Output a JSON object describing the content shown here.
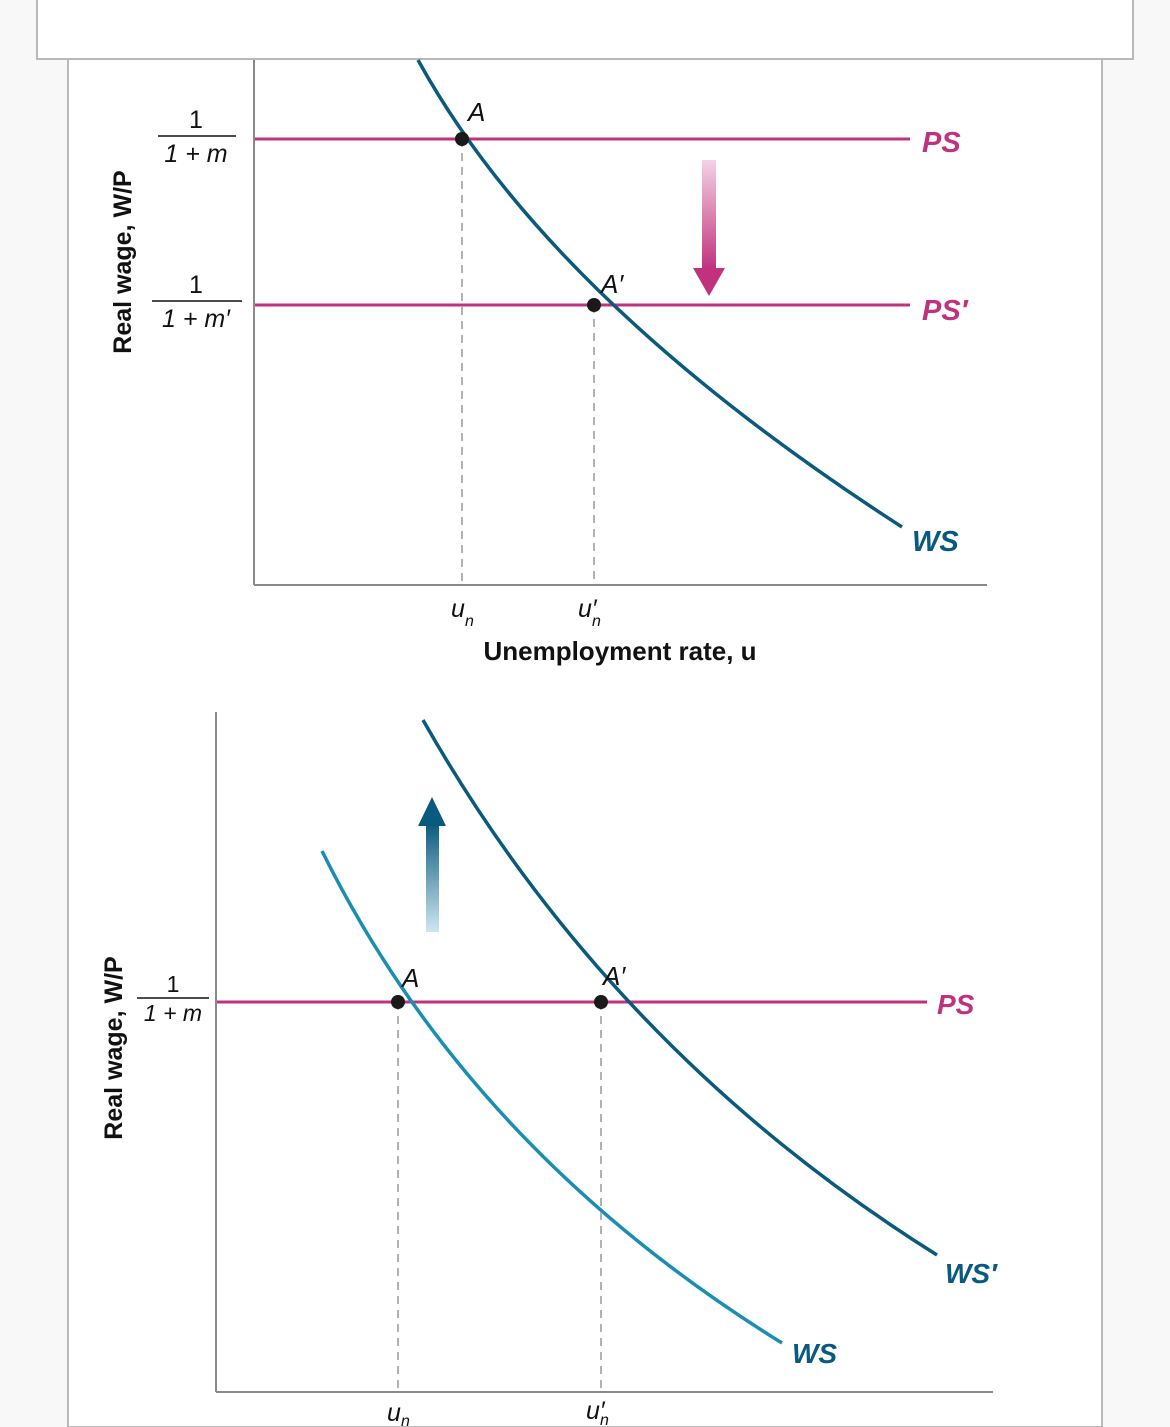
{
  "colors": {
    "ps": "#c0317e",
    "ws": "#0a5a7e",
    "ws_light": "#1a8db3",
    "axis": "#8a8a8a",
    "point": "#1a1a1a",
    "page_bg": "#f8f8f8",
    "card_bg": "#ffffff"
  },
  "top_panel": {
    "y_axis_title": "Real wage, W/P",
    "x_axis_title": "Unemployment rate, u",
    "ps_level": {
      "numerator": "1",
      "denominator": "1 + m"
    },
    "ps_prime_level": {
      "numerator": "1",
      "denominator": "1 + m′"
    },
    "curves": {
      "ps": "PS",
      "ps_prime": "PS′",
      "ws": "WS"
    },
    "points": {
      "a": "A",
      "a_prime": "A′"
    },
    "x_ticks": {
      "un": "u",
      "un_sub": "n",
      "un_prime": "u′",
      "un_prime_sub": "n"
    },
    "arrow_icon": "down-arrow-icon"
  },
  "bottom_panel": {
    "y_axis_title": "Real wage, W/P",
    "ps_level": {
      "numerator": "1",
      "denominator": "1 + m"
    },
    "curves": {
      "ps": "PS",
      "ws": "WS",
      "ws_prime": "WS′"
    },
    "points": {
      "a": "A",
      "a_prime": "A′"
    },
    "x_ticks": {
      "un": "u",
      "un_sub": "n",
      "un_prime": "u′",
      "un_prime_sub": "n"
    },
    "arrow_icon": "up-arrow-icon"
  }
}
